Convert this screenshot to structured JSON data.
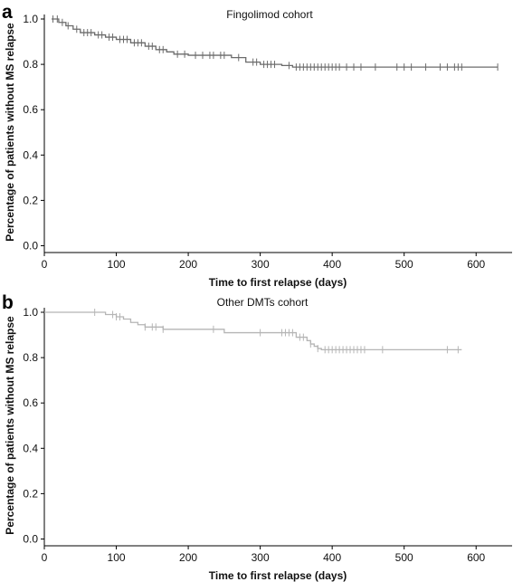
{
  "chart_data": [
    {
      "type": "line",
      "panel_label": "a",
      "title": "Fingolimod cohort",
      "xlabel": "Time to first relapse (days)",
      "ylabel": "Percentage of patients without MS relapse",
      "xlim": [
        0,
        650
      ],
      "ylim": [
        -0.03,
        1.02
      ],
      "xticks": [
        "0",
        "100",
        "200",
        "300",
        "400",
        "500",
        "600"
      ],
      "yticks": [
        "0.0",
        "0.2",
        "0.4",
        "0.6",
        "0.8",
        "1.0"
      ],
      "grid": false,
      "line_color": "#6b6b6b",
      "series": [
        {
          "step_x": [
            10,
            20,
            30,
            40,
            50,
            70,
            85,
            100,
            120,
            140,
            155,
            170,
            180,
            200,
            240,
            260,
            280,
            300,
            330,
            345,
            630
          ],
          "step_y": [
            1.0,
            0.985,
            0.97,
            0.955,
            0.94,
            0.93,
            0.92,
            0.91,
            0.895,
            0.88,
            0.865,
            0.855,
            0.845,
            0.84,
            0.84,
            0.83,
            0.81,
            0.8,
            0.795,
            0.788,
            0.788
          ],
          "censor_x": [
            12,
            18,
            25,
            33,
            45,
            55,
            60,
            65,
            75,
            80,
            90,
            95,
            105,
            110,
            115,
            125,
            130,
            135,
            145,
            150,
            160,
            165,
            185,
            195,
            210,
            220,
            230,
            235,
            245,
            250,
            270,
            290,
            295,
            305,
            310,
            315,
            320,
            340,
            350,
            355,
            360,
            365,
            370,
            375,
            380,
            385,
            390,
            395,
            400,
            405,
            410,
            420,
            430,
            440,
            460,
            490,
            500,
            510,
            530,
            550,
            560,
            570,
            575,
            580,
            630
          ]
        }
      ]
    },
    {
      "type": "line",
      "panel_label": "b",
      "title": "Other DMTs cohort",
      "xlabel": "Time to first relapse (days)",
      "ylabel": "Percentage of patients without MS relapse",
      "xlim": [
        0,
        650
      ],
      "ylim": [
        -0.03,
        1.02
      ],
      "xticks": [
        "0",
        "100",
        "200",
        "300",
        "400",
        "500",
        "600"
      ],
      "yticks": [
        "0.0",
        "0.2",
        "0.4",
        "0.6",
        "0.8",
        "1.0"
      ],
      "grid": false,
      "line_color": "#b5b5b5",
      "series": [
        {
          "step_x": [
            0,
            85,
            100,
            110,
            120,
            130,
            140,
            165,
            250,
            280,
            350,
            365,
            370,
            375,
            380,
            385,
            580
          ],
          "step_y": [
            1.0,
            0.99,
            0.98,
            0.97,
            0.955,
            0.945,
            0.935,
            0.925,
            0.91,
            0.91,
            0.89,
            0.875,
            0.86,
            0.85,
            0.84,
            0.835,
            0.835
          ],
          "censor_x": [
            70,
            95,
            100,
            105,
            140,
            150,
            155,
            165,
            235,
            300,
            330,
            335,
            340,
            345,
            355,
            360,
            370,
            380,
            390,
            395,
            400,
            405,
            410,
            415,
            420,
            425,
            430,
            435,
            440,
            445,
            470,
            560,
            575
          ]
        }
      ]
    }
  ]
}
